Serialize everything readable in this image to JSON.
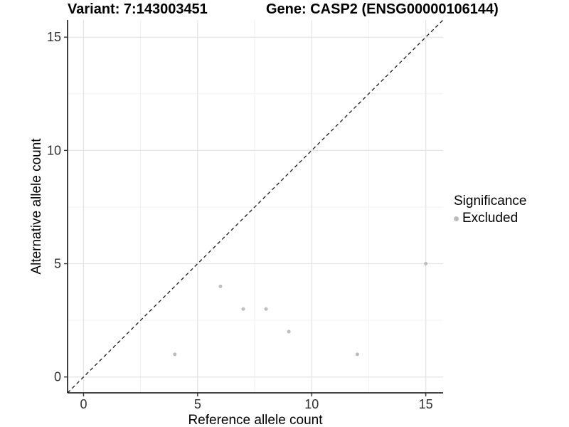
{
  "header": {
    "variant_title": "Variant: 7:143003451",
    "gene_title": "Gene: CASP2 (ENSG00000106144)"
  },
  "chart_data": {
    "type": "scatter",
    "title_left": "Variant: 7:143003451",
    "title_right": "Gene: CASP2 (ENSG00000106144)",
    "xlabel": "Reference allele count",
    "ylabel": "Alternative allele count",
    "xlim": [
      -0.7,
      15.76
    ],
    "ylim": [
      -0.7,
      15.76
    ],
    "x_ticks": [
      0,
      5,
      10,
      15
    ],
    "y_ticks": [
      0,
      5,
      10,
      15
    ],
    "x_minor_ticks": [
      2.5,
      7.5,
      12.5
    ],
    "y_minor_ticks": [
      2.5,
      7.5,
      12.5
    ],
    "grid": true,
    "identity_line": {
      "slope": 1,
      "intercept": 0,
      "style": "dashed"
    },
    "series": [
      {
        "name": "Excluded",
        "color": "#bdbdbd",
        "points": [
          [
            4,
            1
          ],
          [
            6,
            4
          ],
          [
            7,
            3
          ],
          [
            8,
            3
          ],
          [
            9,
            2
          ],
          [
            12,
            1
          ],
          [
            15,
            5
          ]
        ]
      }
    ],
    "legend": {
      "title": "Significance",
      "position": "right",
      "entries": [
        {
          "label": "Excluded",
          "color": "#bdbdbd"
        }
      ]
    }
  },
  "legend": {
    "title": "Significance",
    "item_label": "Excluded",
    "item_color": "#bdbdbd"
  },
  "colors": {
    "background": "#ffffff",
    "point": "#bdbdbd",
    "grid_major": "#e4e4e4",
    "grid_minor": "#f1f1f1",
    "axis_line": "#2b2b2b",
    "tick_mark": "#333333",
    "tick_label": "#303030",
    "dashed_line": "#1a1a1a",
    "text": "#000000"
  }
}
